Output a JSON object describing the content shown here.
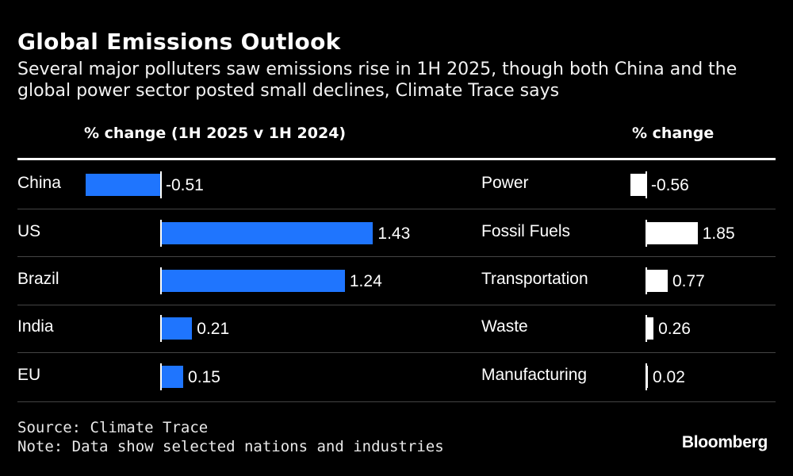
{
  "title": "Global Emissions Outlook",
  "subtitle": "Several major polluters saw emissions rise in 1H 2025, though both China and the global power sector posted small declines, Climate Trace says",
  "footer": {
    "source": "Source: Climate Trace",
    "note": "Note: Data show selected nations and industries",
    "brand": "Bloomberg"
  },
  "colors": {
    "nations_bar": "#1f75fe",
    "sectors_bar": "#ffffff",
    "background": "#000000"
  },
  "chart_data": [
    {
      "type": "bar",
      "orientation": "horizontal",
      "xlabel": "% change (1H 2025 v 1H 2024)",
      "categories": [
        "China",
        "US",
        "Brazil",
        "India",
        "EU"
      ],
      "values": [
        -0.51,
        1.43,
        1.24,
        0.21,
        0.15
      ],
      "value_labels": [
        "-0.51",
        "1.43",
        "1.24",
        "0.21",
        "0.15"
      ],
      "grid": false,
      "legend": "none"
    },
    {
      "type": "bar",
      "orientation": "horizontal",
      "xlabel": "% change",
      "categories": [
        "Power",
        "Fossil Fuels",
        "Transportation",
        "Waste",
        "Manufacturing"
      ],
      "values": [
        -0.56,
        1.85,
        0.77,
        0.26,
        0.02
      ],
      "value_labels": [
        "-0.56",
        "1.85",
        "0.77",
        "0.26",
        "0.02"
      ],
      "grid": false,
      "legend": "none"
    }
  ]
}
